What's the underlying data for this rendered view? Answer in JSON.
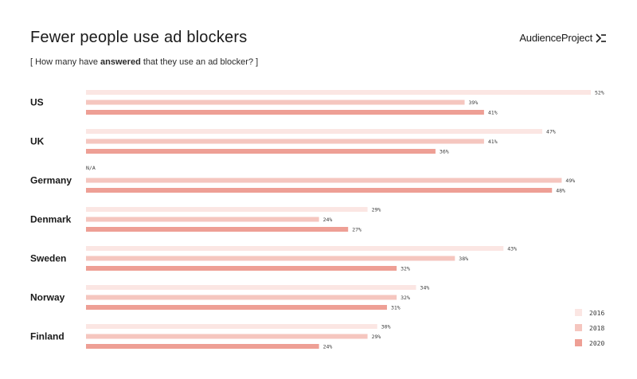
{
  "header": {
    "title": "Fewer people use ad blockers",
    "subtitle_open": "[ How many have ",
    "subtitle_bold": "answered",
    "subtitle_close": " that they use an ad blocker? ]",
    "brand": "AudienceProject"
  },
  "colors": {
    "y2016": "#fbe6e3",
    "y2018": "#f5c6bf",
    "y2020": "#ee9f95",
    "brand_mark": "#1a1a1a"
  },
  "icons": {
    "brand_mark": "chevron-lines-icon"
  },
  "chart_data": {
    "type": "bar",
    "orientation": "horizontal",
    "categories": [
      "US",
      "UK",
      "Germany",
      "Denmark",
      "Sweden",
      "Norway",
      "Finland"
    ],
    "series": [
      {
        "name": "2016",
        "values": [
          52,
          47,
          null,
          29,
          43,
          34,
          30
        ],
        "labels": [
          "52%",
          "47%",
          "N/A",
          "29%",
          "43%",
          "34%",
          "30%"
        ]
      },
      {
        "name": "2018",
        "values": [
          39,
          41,
          49,
          24,
          38,
          32,
          29
        ],
        "labels": [
          "39%",
          "41%",
          "49%",
          "24%",
          "38%",
          "32%",
          "29%"
        ]
      },
      {
        "name": "2020",
        "values": [
          41,
          36,
          48,
          27,
          32,
          31,
          24
        ],
        "labels": [
          "41%",
          "36%",
          "48%",
          "27%",
          "32%",
          "31%",
          "24%"
        ]
      }
    ],
    "xlim": [
      0,
      52
    ],
    "legend": {
      "position": "bottom-right",
      "entries": [
        "2016",
        "2018",
        "2020"
      ]
    },
    "grid": false
  }
}
